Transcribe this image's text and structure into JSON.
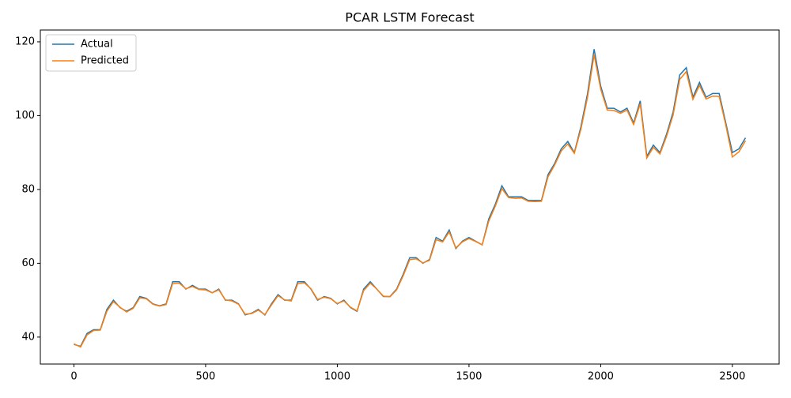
{
  "chart_data": {
    "type": "line",
    "title": "PCAR LSTM Forecast",
    "x": [
      0,
      25,
      50,
      75,
      100,
      125,
      150,
      175,
      200,
      225,
      250,
      275,
      300,
      325,
      350,
      375,
      400,
      425,
      450,
      475,
      500,
      525,
      550,
      575,
      600,
      625,
      650,
      675,
      700,
      725,
      750,
      775,
      800,
      825,
      850,
      875,
      900,
      925,
      950,
      975,
      1000,
      1025,
      1050,
      1075,
      1100,
      1125,
      1150,
      1175,
      1200,
      1225,
      1250,
      1275,
      1300,
      1325,
      1350,
      1375,
      1400,
      1425,
      1450,
      1475,
      1500,
      1525,
      1550,
      1575,
      1600,
      1625,
      1650,
      1675,
      1700,
      1725,
      1750,
      1775,
      1800,
      1825,
      1850,
      1875,
      1900,
      1925,
      1950,
      1975,
      2000,
      2025,
      2050,
      2075,
      2100,
      2125,
      2150,
      2175,
      2200,
      2225,
      2250,
      2275,
      2300,
      2325,
      2350,
      2375,
      2400,
      2425,
      2450,
      2475,
      2500,
      2525,
      2550
    ],
    "series": [
      {
        "name": "Actual",
        "color": "#1f77b4",
        "values": [
          38,
          37.5,
          41,
          42,
          42,
          47.5,
          50,
          48,
          47,
          48,
          51,
          50.5,
          49,
          48.5,
          49,
          55,
          55,
          53,
          54,
          53,
          53,
          52,
          53,
          50,
          50,
          49,
          46,
          46.5,
          47.5,
          46,
          49,
          51.5,
          50,
          50,
          55,
          55,
          53,
          50,
          51,
          50.5,
          49,
          50,
          48,
          47,
          53,
          55,
          53,
          51,
          51,
          53,
          57,
          61.5,
          61.5,
          60,
          61,
          67,
          66,
          69,
          64,
          66,
          67,
          66,
          65,
          72,
          76,
          81,
          78,
          78,
          78,
          77,
          77,
          77,
          84,
          87,
          91,
          93,
          90,
          97,
          106,
          118,
          108,
          102,
          102,
          101,
          102,
          98,
          104,
          89,
          92,
          90,
          95,
          101,
          111,
          113,
          105,
          109,
          105,
          106,
          106,
          98,
          90,
          91,
          94
        ]
      },
      {
        "name": "Predicted",
        "color": "#ff7f0e",
        "values": [
          38.2,
          37.3,
          40.6,
          41.8,
          41.9,
          47,
          49.6,
          48.1,
          46.8,
          47.8,
          50.6,
          50.4,
          48.9,
          48.4,
          48.8,
          54.5,
          54.6,
          53.1,
          53.7,
          52.9,
          52.8,
          52,
          52.8,
          50.1,
          49.8,
          48.9,
          46.2,
          46.4,
          47.3,
          46.1,
          48.7,
          51.2,
          50.1,
          49.8,
          54.5,
          54.7,
          53.1,
          50.2,
          50.8,
          50.4,
          49.1,
          49.8,
          48.1,
          47.1,
          52.6,
          54.6,
          53,
          51.1,
          50.9,
          52.8,
          56.6,
          61,
          61.2,
          60.1,
          60.8,
          66.4,
          65.8,
          68.5,
          64.2,
          65.8,
          66.7,
          65.9,
          65,
          71.4,
          75.5,
          80.2,
          77.8,
          77.6,
          77.7,
          76.8,
          76.7,
          76.8,
          83.4,
          86.6,
          90.4,
          92.3,
          89.8,
          96.3,
          105,
          116.5,
          107.2,
          101.5,
          101.4,
          100.6,
          101.5,
          97.6,
          103.2,
          88.5,
          91.4,
          89.6,
          94.4,
          100.2,
          109.8,
          111.9,
          104.4,
          108.2,
          104.5,
          105.3,
          105.2,
          97.4,
          88.8,
          90.2,
          93.2
        ]
      }
    ],
    "xlim": [
      -127.5,
      2677.5
    ],
    "ylim": [
      32.7,
      123.2
    ],
    "xticks": [
      0,
      500,
      1000,
      1500,
      2000,
      2500
    ],
    "yticks": [
      40,
      60,
      80,
      100,
      120
    ],
    "legend": "upper left"
  }
}
